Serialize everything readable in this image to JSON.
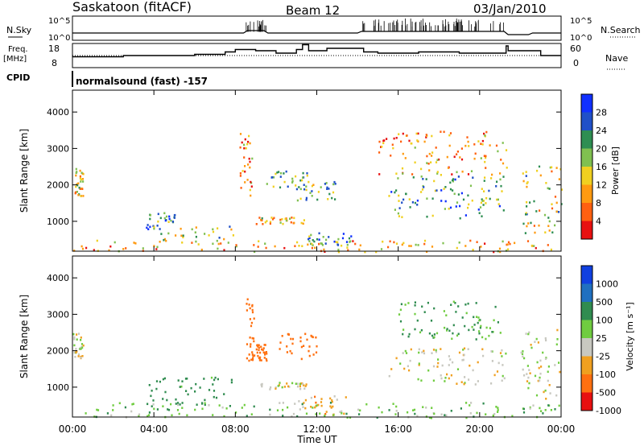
{
  "header": {
    "station": "Saskatoon (fitACF)",
    "beam": "Beam 12",
    "date": "03/Jan/2010"
  },
  "noise_panel": {
    "left_label": "N.Sky",
    "right_label": "N.Search",
    "left_ticks": [
      "10^5",
      "10^0"
    ],
    "right_ticks": [
      "10^5",
      "10^0"
    ]
  },
  "freq_panel": {
    "left_label_1": "Freq.",
    "left_label_2": "[MHz]",
    "right_label": "Nave",
    "left_ticks": [
      "18",
      "8"
    ],
    "right_ticks": [
      "60",
      "0"
    ]
  },
  "cpid": {
    "label": "CPID",
    "value": "normalsound (fast) -157"
  },
  "power_panel": {
    "ylabel": "Slant Range [km]",
    "yticks": [
      "4000",
      "3000",
      "2000",
      "1000"
    ],
    "colorbar_label": "Power [dB]",
    "colorbar_ticks": [
      "28",
      "24",
      "20",
      "16",
      "12",
      "8",
      "4"
    ],
    "colors": [
      "#1030ff",
      "#2050c8",
      "#2e8e52",
      "#80c050",
      "#f0d020",
      "#ff9a10",
      "#ff6010",
      "#e81010"
    ]
  },
  "velocity_panel": {
    "ylabel": "Slant Range [km]",
    "yticks": [
      "4000",
      "3000",
      "2000",
      "1000"
    ],
    "colorbar_label": "Velocity [m s⁻¹]",
    "colorbar_ticks": [
      "1000",
      "500",
      "100",
      "25",
      "-25",
      "-100",
      "-500",
      "-1000"
    ],
    "colors": [
      "#1040e0",
      "#2070c0",
      "#308c50",
      "#70cc40",
      "#c8c8c0",
      "#f0a020",
      "#ff7010",
      "#e81010"
    ]
  },
  "x_axis": {
    "ticks": [
      "00:00",
      "04:00",
      "08:00",
      "12:00",
      "16:00",
      "20:00",
      "00:00"
    ],
    "label": "Time UT"
  },
  "chart_data": {
    "type": "heatmap",
    "title": "Saskatoon (fitACF)",
    "xlabel": "Time UT",
    "ylabel": "Slant Range [km]",
    "xlim_hours": [
      0,
      24
    ],
    "ylim_km": [
      180,
      4600
    ],
    "power_regions": [
      {
        "t0": 0.0,
        "t1": 0.5,
        "r0": 1700,
        "r1": 2500,
        "level": 0.4
      },
      {
        "t0": 3.6,
        "t1": 5.0,
        "r0": 800,
        "r1": 1300,
        "level": 0.7
      },
      {
        "t0": 4.2,
        "t1": 8.0,
        "r0": 400,
        "r1": 900,
        "level": 0.5
      },
      {
        "t0": 8.2,
        "t1": 8.8,
        "r0": 1700,
        "r1": 3500,
        "level": 0.3
      },
      {
        "t0": 9.5,
        "t1": 11.5,
        "r0": 1900,
        "r1": 2400,
        "level": 0.6
      },
      {
        "t0": 11.0,
        "t1": 13.0,
        "r0": 1600,
        "r1": 2200,
        "level": 0.6
      },
      {
        "t0": 9.0,
        "t1": 11.5,
        "r0": 950,
        "r1": 1150,
        "level": 0.4
      },
      {
        "t0": 11.5,
        "t1": 13.8,
        "r0": 300,
        "r1": 700,
        "level": 0.7
      },
      {
        "t0": 15.5,
        "t1": 21.3,
        "r0": 1100,
        "r1": 2300,
        "level": 0.65
      },
      {
        "t0": 15.0,
        "t1": 21.3,
        "r0": 2300,
        "r1": 3500,
        "level": 0.3
      },
      {
        "t0": 22.0,
        "t1": 24.0,
        "r0": 700,
        "r1": 2600,
        "level": 0.5
      },
      {
        "t0": 0.0,
        "t1": 24.0,
        "r0": 180,
        "r1": 500,
        "level": 0.35
      }
    ],
    "velocity_regions": [
      {
        "t0": 0.0,
        "t1": 0.5,
        "r0": 1800,
        "r1": 2500,
        "v": 0
      },
      {
        "t0": 3.6,
        "t1": 8.0,
        "r0": 500,
        "r1": 1300,
        "v": 150
      },
      {
        "t0": 8.5,
        "t1": 8.9,
        "r0": 1700,
        "r1": 3500,
        "v": -300
      },
      {
        "t0": 9.0,
        "t1": 9.5,
        "r0": 1700,
        "r1": 2200,
        "v": -300
      },
      {
        "t0": 10.0,
        "t1": 12.0,
        "r0": 1800,
        "r1": 2500,
        "v": -400
      },
      {
        "t0": 9.0,
        "t1": 11.5,
        "r0": 950,
        "r1": 1150,
        "v": 0
      },
      {
        "t0": 11.0,
        "t1": 13.5,
        "r0": 250,
        "r1": 800,
        "v": -60
      },
      {
        "t0": 15.5,
        "t1": 21.3,
        "r0": 1100,
        "r1": 2100,
        "v": 0
      },
      {
        "t0": 16.0,
        "t1": 21.0,
        "r0": 2300,
        "r1": 3400,
        "v": 120
      },
      {
        "t0": 22.0,
        "t1": 24.0,
        "r0": 700,
        "r1": 2600,
        "v": 0
      },
      {
        "t0": 0.0,
        "t1": 24.0,
        "r0": 180,
        "r1": 600,
        "v": 60
      }
    ]
  }
}
